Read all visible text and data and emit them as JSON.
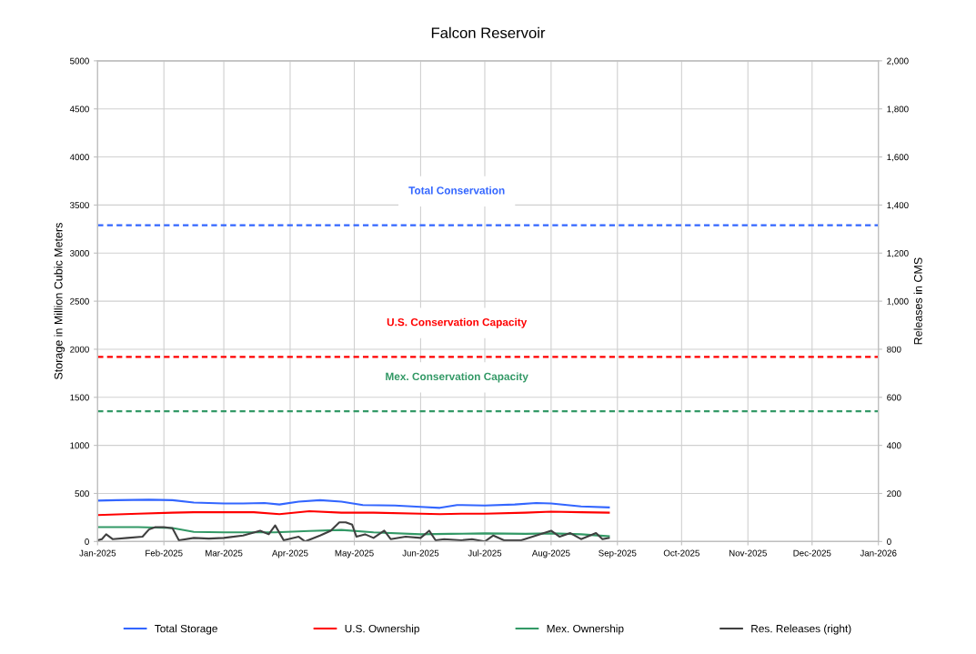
{
  "chart_data": {
    "type": "line",
    "title": "Falcon Reservoir",
    "ylabel": "Storage in Million Cubic Meters",
    "y2label": "Releases in CMS",
    "xlim": [
      "2025-01-01",
      "2026-01-01"
    ],
    "xticks": [
      {
        "value": "2025-01-01",
        "label": "Jan-2025"
      },
      {
        "value": "2025-02-01",
        "label": "Feb-2025"
      },
      {
        "value": "2025-03-01",
        "label": "Mar-2025"
      },
      {
        "value": "2025-04-01",
        "label": "Apr-2025"
      },
      {
        "value": "2025-05-01",
        "label": "May-2025"
      },
      {
        "value": "2025-06-01",
        "label": "Jun-2025"
      },
      {
        "value": "2025-07-01",
        "label": "Jul-2025"
      },
      {
        "value": "2025-08-01",
        "label": "Aug-2025"
      },
      {
        "value": "2025-09-01",
        "label": "Sep-2025"
      },
      {
        "value": "2025-10-01",
        "label": "Oct-2025"
      },
      {
        "value": "2025-11-01",
        "label": "Nov-2025"
      },
      {
        "value": "2025-12-01",
        "label": "Dec-2025"
      },
      {
        "value": "2026-01-01",
        "label": "Jan-2026"
      }
    ],
    "ylim": [
      0,
      5000
    ],
    "yticks": [
      0,
      500,
      1000,
      1500,
      2000,
      2500,
      3000,
      3500,
      4000,
      4500,
      5000
    ],
    "y2lim": [
      0,
      2000
    ],
    "y2ticks": [
      0,
      200,
      400,
      600,
      800,
      {
        "value": 1000,
        "label": "1,000"
      },
      {
        "value": 1200,
        "label": "1,200"
      },
      {
        "value": 1400,
        "label": "1,400"
      },
      {
        "value": 1600,
        "label": "1,600"
      },
      {
        "value": 1800,
        "label": "1,800"
      },
      {
        "value": 2000,
        "label": "2,000"
      }
    ],
    "grid": true,
    "legend": "bottom",
    "marker": "none",
    "line_style": "solid",
    "series": [
      {
        "name": "Total Storage",
        "color": "#3366ff",
        "x": [
          "2025-01-01",
          "2025-01-10",
          "2025-01-25",
          "2025-02-05",
          "2025-02-15",
          "2025-03-01",
          "2025-03-10",
          "2025-03-20",
          "2025-03-27",
          "2025-04-05",
          "2025-04-15",
          "2025-04-25",
          "2025-05-05",
          "2025-05-20",
          "2025-06-01",
          "2025-06-10",
          "2025-06-18",
          "2025-07-01",
          "2025-07-15",
          "2025-07-25",
          "2025-08-01",
          "2025-08-15",
          "2025-08-28"
        ],
        "values": [
          425,
          430,
          435,
          430,
          405,
          395,
          395,
          400,
          385,
          415,
          430,
          415,
          380,
          375,
          360,
          350,
          380,
          375,
          385,
          400,
          395,
          365,
          355
        ]
      },
      {
        "name": "U.S. Ownership",
        "color": "#ff0000",
        "x": [
          "2025-01-01",
          "2025-01-20",
          "2025-02-05",
          "2025-02-15",
          "2025-03-01",
          "2025-03-15",
          "2025-03-27",
          "2025-04-10",
          "2025-04-25",
          "2025-05-10",
          "2025-06-01",
          "2025-06-10",
          "2025-06-20",
          "2025-07-01",
          "2025-07-20",
          "2025-08-01",
          "2025-08-15",
          "2025-08-28"
        ],
        "values": [
          275,
          290,
          300,
          305,
          305,
          305,
          285,
          315,
          300,
          300,
          290,
          285,
          290,
          290,
          300,
          310,
          305,
          300
        ]
      },
      {
        "name": "Mex. Ownership",
        "color": "#339966",
        "x": [
          "2025-01-01",
          "2025-01-20",
          "2025-02-05",
          "2025-02-15",
          "2025-03-01",
          "2025-03-25",
          "2025-04-10",
          "2025-04-25",
          "2025-05-10",
          "2025-06-01",
          "2025-06-15",
          "2025-07-01",
          "2025-07-20",
          "2025-08-01",
          "2025-08-15",
          "2025-08-28"
        ],
        "values": [
          150,
          150,
          140,
          100,
          95,
          95,
          110,
          120,
          95,
          75,
          80,
          85,
          80,
          85,
          75,
          55
        ]
      },
      {
        "name": "Res. Releases (right)",
        "color": "#404040",
        "axis": "y2",
        "x": [
          "2025-01-01",
          "2025-01-03",
          "2025-01-05",
          "2025-01-08",
          "2025-01-15",
          "2025-01-22",
          "2025-01-25",
          "2025-01-28",
          "2025-02-01",
          "2025-02-05",
          "2025-02-08",
          "2025-02-15",
          "2025-02-22",
          "2025-03-01",
          "2025-03-10",
          "2025-03-18",
          "2025-03-22",
          "2025-03-25",
          "2025-03-29",
          "2025-04-05",
          "2025-04-08",
          "2025-04-15",
          "2025-04-20",
          "2025-04-24",
          "2025-04-27",
          "2025-04-30",
          "2025-05-02",
          "2025-05-06",
          "2025-05-10",
          "2025-05-15",
          "2025-05-18",
          "2025-05-25",
          "2025-06-01",
          "2025-06-05",
          "2025-06-08",
          "2025-06-12",
          "2025-06-20",
          "2025-06-25",
          "2025-07-01",
          "2025-07-05",
          "2025-07-10",
          "2025-07-18",
          "2025-07-25",
          "2025-08-01",
          "2025-08-05",
          "2025-08-10",
          "2025-08-15",
          "2025-08-22",
          "2025-08-25",
          "2025-08-28"
        ],
        "values": [
          5,
          10,
          30,
          10,
          15,
          20,
          50,
          60,
          60,
          55,
          5,
          15,
          12,
          15,
          25,
          45,
          30,
          67,
          5,
          20,
          0,
          25,
          45,
          80,
          80,
          70,
          20,
          30,
          15,
          45,
          10,
          20,
          15,
          45,
          5,
          10,
          5,
          10,
          0,
          25,
          5,
          5,
          25,
          45,
          20,
          35,
          10,
          35,
          10,
          15
        ]
      }
    ],
    "ref_lines": [
      {
        "axis": "y",
        "value": 3290,
        "label": "Total Conservation",
        "color": "#3366ff",
        "line_style": "dashed"
      },
      {
        "axis": "y",
        "value": 1920,
        "label": "U.S. Conservation Capacity",
        "color": "#ff0000",
        "line_style": "dashed"
      },
      {
        "axis": "y",
        "value": 1355,
        "label": "Mex. Conservation Capacity",
        "color": "#339966",
        "line_style": "dashed"
      }
    ]
  }
}
